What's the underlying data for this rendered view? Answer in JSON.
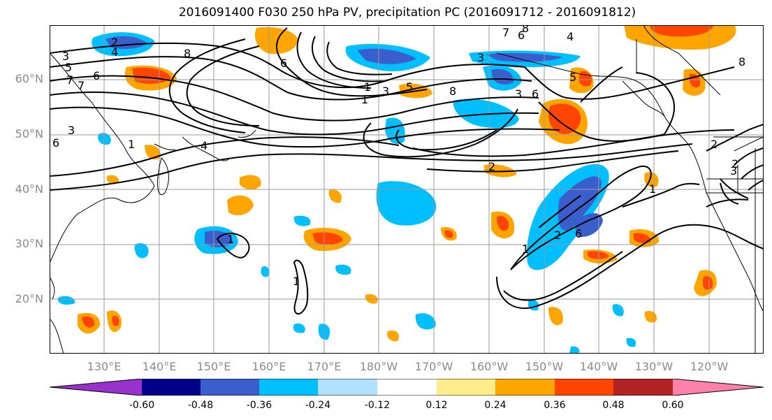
{
  "title": "2016091400 F030 250 hPa PV, precipitation PC (2016091712 - 2016091812)",
  "latitude_labels": [
    "60°N",
    "50°N",
    "40°N",
    "30°N",
    "20°N"
  ],
  "longitude_labels": [
    "130°E",
    "140°E",
    "150°E",
    "160°E",
    "170°E",
    "180°W",
    "170°W",
    "160°W",
    "150°W",
    "140°W",
    "130°W",
    "120°W"
  ],
  "colorbar": {
    "tick_labels": [
      "-0.60",
      "-0.48",
      "-0.36",
      "-0.24",
      "-0.12",
      "0.12",
      "0.24",
      "0.36",
      "0.48",
      "0.60"
    ],
    "colors": [
      "#9932cc",
      "#00008b",
      "#3a5fcd",
      "#00bfff",
      "#b0e2ff",
      "#ffffff",
      "#ffec8b",
      "#ffa500",
      "#ff4500",
      "#b22222",
      "#ff82ab"
    ]
  },
  "contour_labels": [
    "2",
    "4",
    "3",
    "5",
    "6",
    "7",
    "8",
    "1",
    "3",
    "6",
    "5",
    "8",
    "3",
    "6",
    "4",
    "7",
    "8",
    "3",
    "5",
    "6",
    "3",
    "1",
    "4",
    "2",
    "2",
    "1",
    "1",
    "2",
    "6",
    "1",
    "1",
    "2",
    "3",
    "1",
    "6",
    "7",
    "8"
  ],
  "colors": {
    "text_gray": "#8a8a8a",
    "grid": "#9a9a9a",
    "contour": "#000000"
  }
}
